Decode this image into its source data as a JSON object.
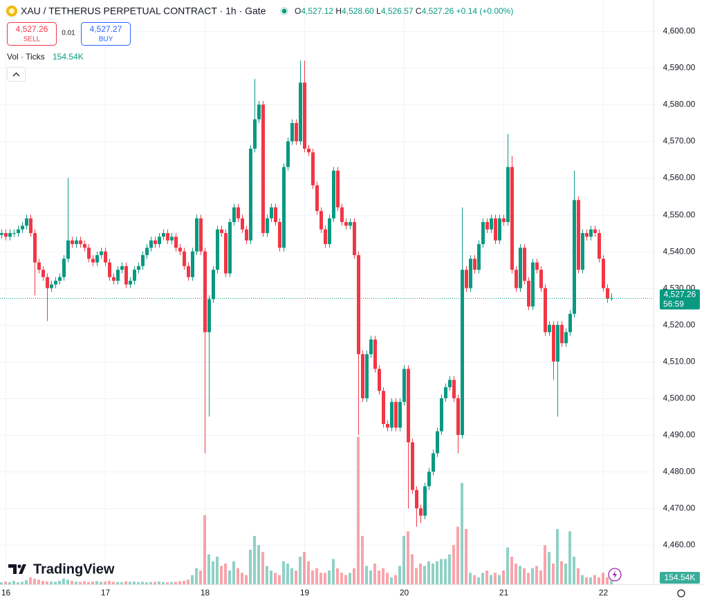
{
  "chart_data": {
    "type": "candlestick",
    "title": "XAU / TETHERUS PERPETUAL CONTRACT · 1h · Gate",
    "ohlc_legend": {
      "o": "O",
      "o_value": "4,527.12",
      "h": "H",
      "h_value": "4,528.60",
      "l": "L",
      "l_value": "4,526.57",
      "c": "C",
      "c_value": "4,527.26",
      "change": "+0.14 (+0.00%)"
    },
    "sell": {
      "price": "4,527.26",
      "label": "SELL"
    },
    "spread": "0.01",
    "buy": {
      "price": "4,527.27",
      "label": "BUY"
    },
    "volume_title": "Vol · Ticks",
    "volume_last_label": "154.54K",
    "last_price": {
      "label": "4,527.26",
      "countdown": "56:59"
    },
    "brand": "TradingView",
    "up_color": "#089981",
    "down_color": "#f23645",
    "grid": true,
    "xlim": [
      -1.3,
      156.2
    ],
    "xticks": [
      {
        "value": 0,
        "label": "16"
      },
      {
        "value": 24,
        "label": "17"
      },
      {
        "value": 48,
        "label": "18"
      },
      {
        "value": 72,
        "label": "19"
      },
      {
        "value": 96,
        "label": "20"
      },
      {
        "value": 120,
        "label": "21"
      },
      {
        "value": 144,
        "label": "22"
      }
    ],
    "ylim": [
      4449.3,
      4608.5
    ],
    "yticks": [
      {
        "value": 4460,
        "label": "4,460.00"
      },
      {
        "value": 4470,
        "label": "4,470.00"
      },
      {
        "value": 4480,
        "label": "4,480.00"
      },
      {
        "value": 4490,
        "label": "4,490.00"
      },
      {
        "value": 4500,
        "label": "4,500.00"
      },
      {
        "value": 4510,
        "label": "4,510.00"
      },
      {
        "value": 4520,
        "label": "4,520.00"
      },
      {
        "value": 4530,
        "label": "4,530.00"
      },
      {
        "value": 4540,
        "label": "4,540.00"
      },
      {
        "value": 4550,
        "label": "4,550.00"
      },
      {
        "value": 4560,
        "label": "4,560.00"
      },
      {
        "value": 4570,
        "label": "4,570.00"
      },
      {
        "value": 4580,
        "label": "4,580.00"
      },
      {
        "value": 4590,
        "label": "4,590.00"
      },
      {
        "value": 4600,
        "label": "4,600.00"
      }
    ],
    "x": [
      -1,
      0,
      1,
      2,
      3,
      4,
      5,
      6,
      7,
      8,
      9,
      10,
      11,
      12,
      13,
      14,
      15,
      16,
      17,
      18,
      19,
      20,
      21,
      22,
      23,
      24,
      25,
      26,
      27,
      28,
      29,
      30,
      31,
      32,
      33,
      34,
      35,
      36,
      37,
      38,
      39,
      40,
      41,
      42,
      43,
      44,
      45,
      46,
      47,
      48,
      49,
      50,
      51,
      52,
      53,
      54,
      55,
      56,
      57,
      58,
      59,
      60,
      61,
      62,
      63,
      64,
      65,
      66,
      67,
      68,
      69,
      70,
      71,
      72,
      73,
      74,
      75,
      76,
      77,
      78,
      79,
      80,
      81,
      82,
      83,
      84,
      85,
      86,
      87,
      88,
      89,
      90,
      91,
      92,
      93,
      94,
      95,
      96,
      97,
      98,
      99,
      100,
      101,
      102,
      103,
      104,
      105,
      106,
      107,
      108,
      109,
      110,
      111,
      112,
      113,
      114,
      115,
      116,
      117,
      118,
      119,
      120,
      121,
      122,
      123,
      124,
      125,
      126,
      127,
      128,
      129,
      130,
      131,
      132,
      133,
      134,
      135,
      136,
      137,
      138,
      139,
      140,
      141,
      142,
      143,
      144,
      145,
      146
    ],
    "open": [
      4544.5,
      4545,
      4544,
      4545,
      4545,
      4546,
      4547,
      4549,
      4545,
      4537,
      4535,
      4533,
      4530,
      4531,
      4532,
      4533,
      4538,
      4543,
      4542,
      4543,
      4542,
      4541,
      4538,
      4537,
      4539,
      4540,
      4537,
      4533,
      4532,
      4535,
      4536,
      4531,
      4532,
      4535,
      4536,
      4539,
      4541,
      4543,
      4542,
      4544,
      4545,
      4543,
      4544,
      4541,
      4540,
      4536,
      4533,
      4540,
      4549,
      4540,
      4518,
      4527,
      4535,
      4546,
      4545,
      4534,
      4548,
      4552,
      4549,
      4546,
      4543,
      4568,
      4576,
      4580,
      4545,
      4549,
      4552,
      4548,
      4541,
      4563,
      4570,
      4575,
      4570,
      4586,
      4568,
      4567,
      4558,
      4551,
      4546,
      4542,
      4549,
      4562,
      4552,
      4548,
      4547,
      4548,
      4539,
      4512,
      4500,
      4512,
      4516,
      4508,
      4502,
      4493,
      4492,
      4499,
      4492,
      4499,
      4508,
      4488,
      4475,
      4470,
      4468,
      4476,
      4480,
      4485,
      4491,
      4500,
      4503,
      4505,
      4500,
      4490,
      4535,
      4530,
      4538,
      4535,
      4542,
      4548,
      4546,
      4549,
      4543,
      4549,
      4548,
      4563,
      4535,
      4530,
      4541,
      4532,
      4525,
      4537,
      4535,
      4530,
      4518,
      4520,
      4510,
      4520,
      4515,
      4518,
      4523,
      4554,
      4535,
      4545,
      4544,
      4546,
      4545,
      4538,
      4530,
      4527.12
    ],
    "high": [
      4546,
      4546,
      4546,
      4546,
      4547,
      4548,
      4550,
      4550,
      4546,
      4538,
      4536,
      4534,
      4532,
      4533,
      4534,
      4539,
      4560,
      4544,
      4544,
      4544,
      4543,
      4542,
      4539,
      4540,
      4541,
      4541,
      4538,
      4534,
      4536,
      4537,
      4537,
      4533,
      4536,
      4537,
      4540,
      4542,
      4544,
      4544,
      4545,
      4546,
      4546,
      4545,
      4545,
      4542,
      4541,
      4537,
      4541,
      4550,
      4550,
      4541,
      4528,
      4536,
      4547,
      4547,
      4546,
      4549,
      4553,
      4553,
      4550,
      4547,
      4569,
      4587,
      4581,
      4581,
      4550,
      4553,
      4553,
      4549,
      4564,
      4571,
      4576,
      4576,
      4592,
      4592,
      4569,
      4568,
      4559,
      4552,
      4547,
      4550,
      4563,
      4563,
      4553,
      4549,
      4549,
      4549,
      4540,
      4513,
      4513,
      4517,
      4517,
      4509,
      4503,
      4494,
      4500,
      4500,
      4500,
      4509,
      4509,
      4489,
      4476,
      4471,
      4477,
      4481,
      4486,
      4492,
      4501,
      4504,
      4506,
      4506,
      4501,
      4552,
      4536,
      4539,
      4539,
      4543,
      4549,
      4549,
      4550,
      4550,
      4550,
      4550,
      4572,
      4566,
      4536,
      4542,
      4542,
      4533,
      4538,
      4538,
      4536,
      4531,
      4521,
      4521,
      4521,
      4521,
      4519,
      4524,
      4562,
      4555,
      4546,
      4546,
      4547,
      4547,
      4546,
      4539,
      4531,
      4528.6
    ],
    "low": [
      4543.5,
      4543,
      4543,
      4544,
      4544,
      4545,
      4546,
      4544,
      4528,
      4534,
      4532,
      4521,
      4529,
      4530,
      4531,
      4532,
      4537,
      4541,
      4541,
      4541,
      4540,
      4537,
      4536,
      4536,
      4538,
      4536,
      4532,
      4531,
      4531,
      4534,
      4530,
      4530,
      4531,
      4534,
      4535,
      4538,
      4540,
      4541,
      4541,
      4543,
      4542,
      4542,
      4540,
      4539,
      4535,
      4532,
      4532,
      4539,
      4539,
      4485,
      4495,
      4526,
      4534,
      4544,
      4533,
      4533,
      4547,
      4548,
      4545,
      4542,
      4542,
      4567,
      4575,
      4544,
      4544,
      4548,
      4547,
      4540,
      4540,
      4562,
      4569,
      4569,
      4569,
      4567,
      4566,
      4557,
      4550,
      4545,
      4541,
      4541,
      4548,
      4551,
      4547,
      4546,
      4546,
      4538,
      4490,
      4499,
      4499,
      4511,
      4507,
      4501,
      4492,
      4491,
      4491,
      4491,
      4491,
      4498,
      4470,
      4474,
      4465,
      4466,
      4467,
      4475,
      4479,
      4484,
      4490,
      4499,
      4502,
      4499,
      4485,
      4489,
      4529,
      4529,
      4534,
      4534,
      4541,
      4545,
      4545,
      4542,
      4542,
      4547,
      4547,
      4534,
      4529,
      4529,
      4531,
      4524,
      4524,
      4534,
      4529,
      4517,
      4517,
      4505,
      4495,
      4514,
      4514,
      4517,
      4522,
      4534,
      4534,
      4543,
      4543,
      4544,
      4537,
      4529,
      4526,
      4526.57
    ],
    "close": [
      4545,
      4544,
      4545,
      4545,
      4546,
      4547,
      4549,
      4545,
      4537,
      4535,
      4533,
      4530,
      4531,
      4532,
      4533,
      4538,
      4543,
      4542,
      4543,
      4542,
      4541,
      4538,
      4537,
      4539,
      4540,
      4537,
      4533,
      4532,
      4535,
      4536,
      4531,
      4532,
      4535,
      4536,
      4539,
      4541,
      4543,
      4542,
      4544,
      4545,
      4543,
      4544,
      4541,
      4540,
      4536,
      4533,
      4540,
      4549,
      4540,
      4518,
      4527,
      4535,
      4546,
      4545,
      4534,
      4548,
      4552,
      4549,
      4546,
      4543,
      4568,
      4576,
      4580,
      4545,
      4549,
      4552,
      4548,
      4541,
      4563,
      4570,
      4575,
      4570,
      4586,
      4568,
      4567,
      4558,
      4551,
      4546,
      4542,
      4549,
      4562,
      4552,
      4548,
      4547,
      4548,
      4539,
      4512,
      4500,
      4512,
      4516,
      4508,
      4502,
      4493,
      4492,
      4499,
      4492,
      4499,
      4508,
      4488,
      4475,
      4470,
      4468,
      4476,
      4480,
      4485,
      4491,
      4500,
      4503,
      4505,
      4500,
      4490,
      4535,
      4530,
      4538,
      4535,
      4542,
      4548,
      4546,
      4549,
      4543,
      4549,
      4548,
      4563,
      4535,
      4530,
      4541,
      4532,
      4525,
      4537,
      4535,
      4530,
      4518,
      4520,
      4510,
      4520,
      4515,
      4518,
      4523,
      4554,
      4535,
      4545,
      4544,
      4546,
      4545,
      4538,
      4530,
      4527.12,
      4527.26
    ],
    "volume": [
      90,
      120,
      100,
      150,
      90,
      110,
      180,
      300,
      240,
      200,
      150,
      130,
      120,
      110,
      150,
      250,
      200,
      150,
      120,
      110,
      130,
      100,
      120,
      140,
      110,
      120,
      150,
      110,
      100,
      90,
      130,
      110,
      120,
      100,
      110,
      90,
      100,
      110,
      120,
      100,
      90,
      100,
      110,
      130,
      150,
      200,
      400,
      700,
      600,
      3000,
      1300,
      1000,
      1200,
      800,
      900,
      600,
      1000,
      700,
      500,
      400,
      1500,
      2100,
      1700,
      1400,
      800,
      600,
      500,
      400,
      1000,
      900,
      700,
      600,
      1200,
      1400,
      1000,
      600,
      700,
      500,
      500,
      600,
      1100,
      700,
      500,
      400,
      500,
      700,
      6400,
      2100,
      800,
      600,
      900,
      600,
      700,
      500,
      300,
      400,
      800,
      2100,
      2300,
      1300,
      700,
      900,
      800,
      1000,
      900,
      1000,
      1100,
      1100,
      1300,
      1700,
      2500,
      4400,
      2400,
      500,
      400,
      300,
      500,
      600,
      400,
      500,
      400,
      600,
      1600,
      1200,
      900,
      800,
      700,
      500,
      700,
      800,
      600,
      1700,
      1400,
      900,
      2400,
      1000,
      900,
      2300,
      1200,
      700,
      400,
      300,
      300,
      400,
      300,
      500,
      300,
      154.54
    ]
  }
}
